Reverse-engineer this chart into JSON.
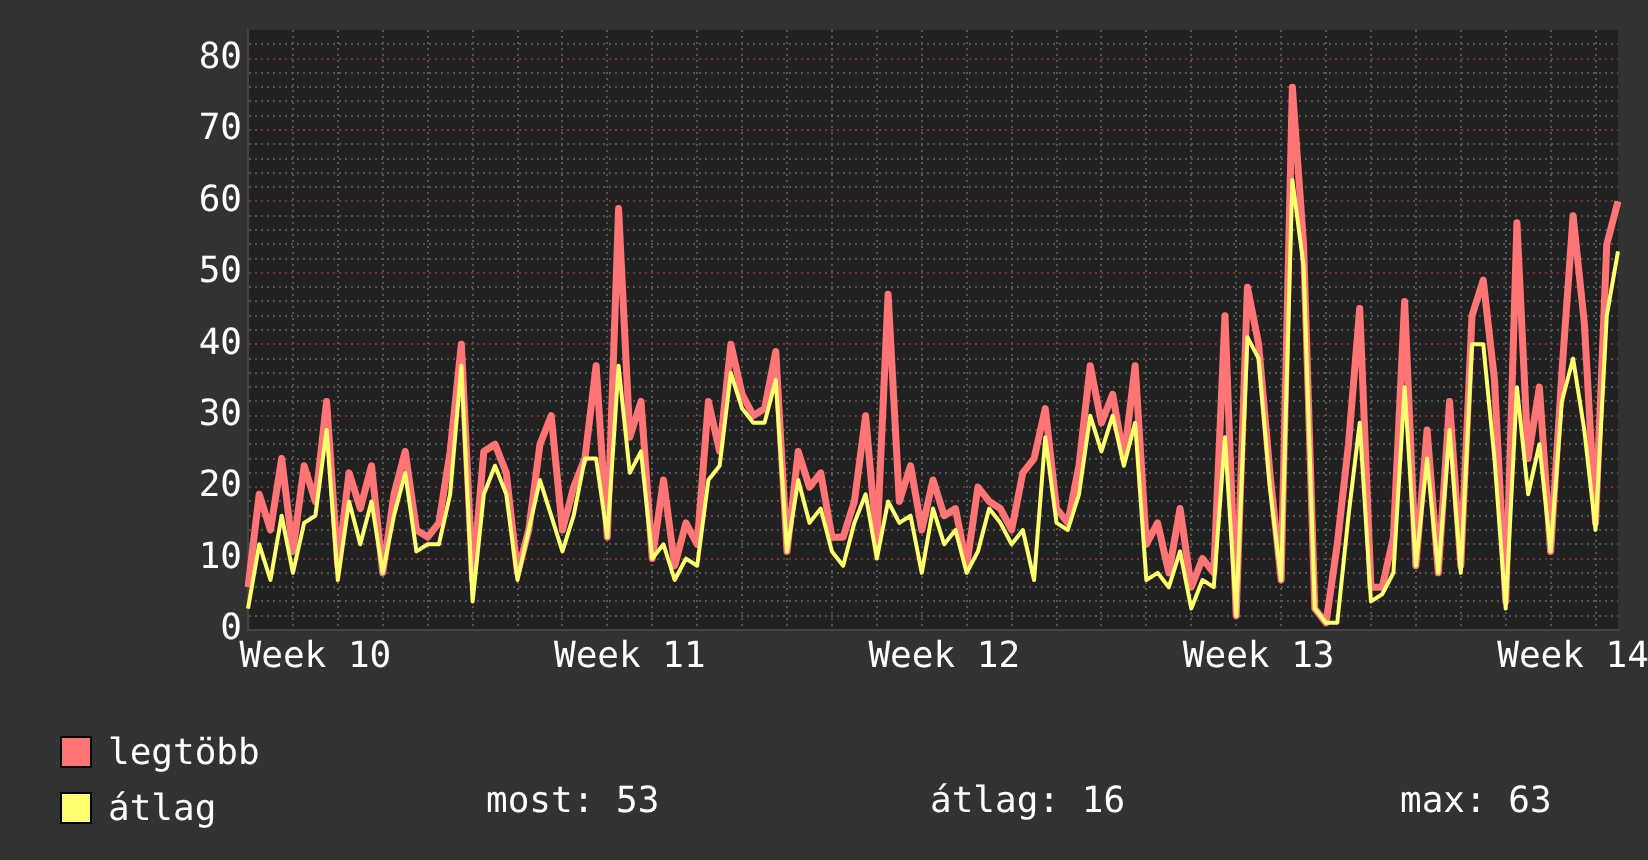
{
  "chart_data": {
    "type": "line",
    "categories": [
      null,
      null,
      null,
      null,
      null,
      null,
      "Week 10",
      null,
      null,
      null,
      null,
      null,
      null,
      null,
      null,
      null,
      null,
      null,
      null,
      null,
      null,
      null,
      null,
      null,
      null,
      null,
      null,
      null,
      null,
      null,
      null,
      null,
      null,
      null,
      "Week 11",
      null,
      null,
      null,
      null,
      null,
      null,
      null,
      null,
      null,
      null,
      null,
      null,
      null,
      null,
      null,
      null,
      null,
      null,
      null,
      null,
      null,
      null,
      null,
      null,
      null,
      null,
      null,
      "Week 12",
      null,
      null,
      null,
      null,
      null,
      null,
      null,
      null,
      null,
      null,
      null,
      null,
      null,
      null,
      null,
      null,
      null,
      null,
      null,
      null,
      null,
      null,
      null,
      null,
      null,
      null,
      null,
      "Week 13",
      null,
      null,
      null,
      null,
      null,
      null,
      null,
      null,
      null,
      null,
      null,
      null,
      null,
      null,
      null,
      null,
      null,
      null,
      null,
      null,
      null,
      null,
      null,
      null,
      null,
      null,
      null,
      "Week 14",
      null,
      null,
      null,
      null
    ],
    "ylim": [
      0,
      84
    ],
    "yticks": [
      0,
      10,
      20,
      30,
      40,
      50,
      60,
      70,
      80,
      {
        "value": 2,
        "label": null
      },
      {
        "value": 4,
        "label": null
      },
      {
        "value": 6,
        "label": null
      },
      {
        "value": 8,
        "label": null
      },
      {
        "value": 12,
        "label": null
      },
      {
        "value": 14,
        "label": null
      },
      {
        "value": 16,
        "label": null
      },
      {
        "value": 18,
        "label": null
      },
      {
        "value": 22,
        "label": null
      },
      {
        "value": 24,
        "label": null
      },
      {
        "value": 26,
        "label": null
      },
      {
        "value": 28,
        "label": null
      },
      {
        "value": 32,
        "label": null
      },
      {
        "value": 34,
        "label": null
      },
      {
        "value": 36,
        "label": null
      },
      {
        "value": 38,
        "label": null
      },
      {
        "value": 42,
        "label": null
      },
      {
        "value": 44,
        "label": null
      },
      {
        "value": 46,
        "label": null
      },
      {
        "value": 48,
        "label": null
      },
      {
        "value": 52,
        "label": null
      },
      {
        "value": 54,
        "label": null
      },
      {
        "value": 56,
        "label": null
      },
      {
        "value": 58,
        "label": null
      },
      {
        "value": 62,
        "label": null
      },
      {
        "value": 64,
        "label": null
      },
      {
        "value": 66,
        "label": null
      },
      {
        "value": 68,
        "label": null
      },
      {
        "value": 72,
        "label": null
      },
      {
        "value": 74,
        "label": null
      },
      {
        "value": 76,
        "label": null
      },
      {
        "value": 78,
        "label": null
      },
      {
        "value": 82,
        "label": null
      }
    ],
    "grid": true,
    "legend": "bottom left",
    "annotations": [
      "most: 53",
      "átlag: 16",
      "max: 63"
    ],
    "series": [
      {
        "name": "legtöbb",
        "color": "#ff7575",
        "values": [
          6,
          19,
          14,
          24,
          11,
          23,
          18,
          32,
          9,
          22,
          17,
          23,
          8,
          19,
          25,
          14,
          13,
          15,
          25,
          40,
          7,
          25,
          26,
          22,
          8,
          14,
          26,
          30,
          14,
          20,
          24,
          37,
          13,
          59,
          27,
          32,
          10,
          21,
          9,
          15,
          12,
          32,
          25,
          40,
          33,
          30,
          31,
          39,
          11,
          25,
          20,
          22,
          13,
          13,
          18,
          30,
          12,
          47,
          18,
          23,
          14,
          21,
          16,
          17,
          9,
          20,
          18,
          17,
          14,
          22,
          24,
          31,
          17,
          15,
          23,
          37,
          29,
          33,
          24,
          37,
          12,
          15,
          8,
          17,
          6,
          10,
          8,
          44,
          2,
          48,
          40,
          22,
          7,
          76,
          54,
          3,
          1,
          12,
          26,
          45,
          6,
          6,
          13,
          46,
          9,
          28,
          8,
          32,
          9,
          44,
          49,
          35,
          4,
          57,
          24,
          34,
          11,
          36,
          58,
          43,
          15,
          54,
          60
        ]
      },
      {
        "name": "átlag",
        "color": "#ffff70",
        "values": [
          3,
          12,
          7,
          16,
          8,
          15,
          16,
          28,
          7,
          18,
          12,
          18,
          8,
          16,
          22,
          11,
          12,
          12,
          19,
          37,
          4,
          19,
          23,
          19,
          7,
          14,
          21,
          16,
          11,
          16,
          24,
          24,
          13,
          37,
          22,
          25,
          10,
          12,
          7,
          10,
          9,
          21,
          23,
          36,
          31,
          29,
          29,
          35,
          11,
          21,
          15,
          17,
          11,
          9,
          15,
          19,
          10,
          18,
          15,
          16,
          8,
          17,
          12,
          14,
          8,
          11,
          17,
          15,
          12,
          14,
          7,
          27,
          15,
          14,
          19,
          30,
          25,
          30,
          23,
          29,
          7,
          8,
          6,
          11,
          3,
          7,
          6,
          27,
          2,
          41,
          38,
          20,
          7,
          63,
          51,
          3,
          1,
          1,
          16,
          29,
          4,
          5,
          8,
          34,
          9,
          24,
          8,
          28,
          8,
          40,
          40,
          24,
          3,
          34,
          19,
          26,
          11,
          32,
          38,
          28,
          14,
          44,
          53
        ]
      }
    ]
  }
}
